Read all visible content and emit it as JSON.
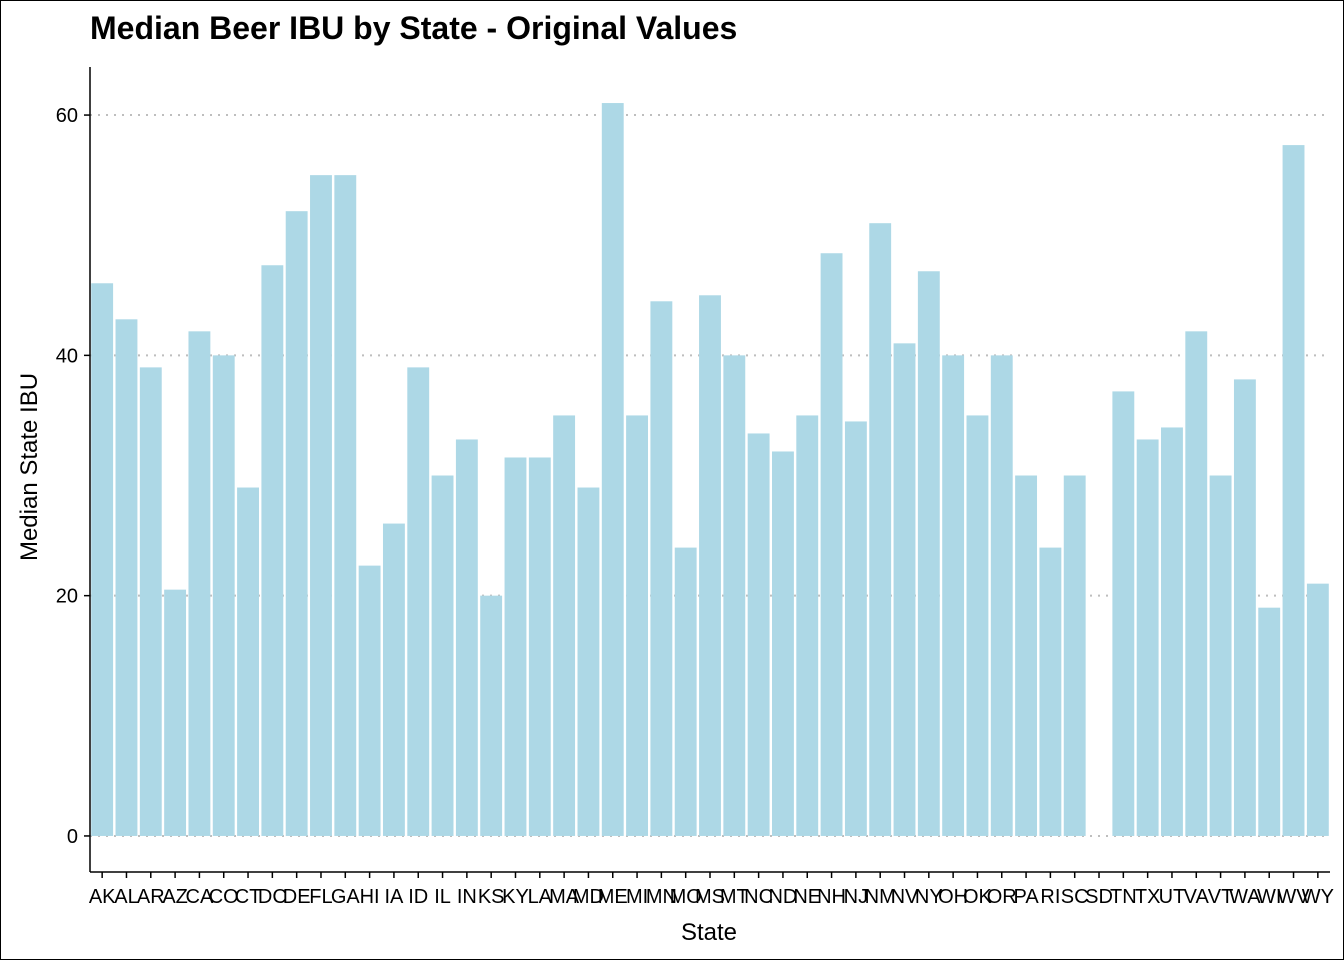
{
  "chart_data": {
    "type": "bar",
    "title": "Median Beer IBU by State - Original Values",
    "xlabel": "State",
    "ylabel": "Median State IBU",
    "categories": [
      "AK",
      "AL",
      "AR",
      "AZ",
      "CA",
      "CO",
      "CT",
      "DC",
      "DE",
      "FL",
      "GA",
      "HI",
      "IA",
      "ID",
      "IL",
      "IN",
      "KS",
      "KY",
      "LA",
      "MA",
      "MD",
      "ME",
      "MI",
      "MN",
      "MO",
      "MS",
      "MT",
      "NC",
      "ND",
      "NE",
      "NH",
      "NJ",
      "NM",
      "NV",
      "NY",
      "OH",
      "OK",
      "OR",
      "PA",
      "RI",
      "SC",
      "SD",
      "TN",
      "TX",
      "UT",
      "VA",
      "VT",
      "WA",
      "WI",
      "WV",
      "WY"
    ],
    "values": [
      46,
      43,
      39,
      20.5,
      42,
      40,
      29,
      47.5,
      52,
      55,
      55,
      22.5,
      26,
      39,
      30,
      33,
      20,
      31.5,
      31.5,
      35,
      29,
      61,
      35,
      44.5,
      24,
      45,
      40,
      33.5,
      32,
      35,
      48.5,
      34.5,
      51,
      41,
      47,
      40,
      35,
      40,
      30,
      24,
      30,
      null,
      37,
      33,
      34,
      42,
      30,
      38,
      19,
      57.5,
      21
    ],
    "ylim": [
      -3,
      64
    ],
    "yticks": [
      0,
      20,
      40,
      60
    ],
    "grid": "horizontal-dotted",
    "legend": "none",
    "colors": {
      "bar": "#add8e6",
      "grid": "#bebebe",
      "axis": "#000000"
    }
  }
}
